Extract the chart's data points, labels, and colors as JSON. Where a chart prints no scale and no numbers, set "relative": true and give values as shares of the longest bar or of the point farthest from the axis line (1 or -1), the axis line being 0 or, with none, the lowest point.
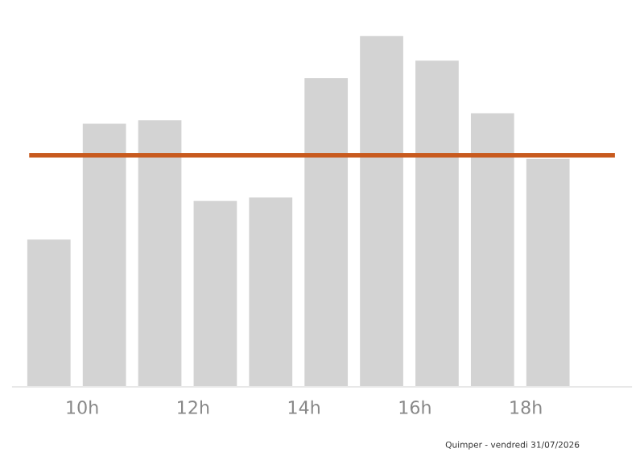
{
  "chart_data": {
    "type": "bar",
    "relative": true,
    "x": [
      9.4,
      10.4,
      11.4,
      12.4,
      13.4,
      14.4,
      15.4,
      16.4,
      17.4,
      18.4
    ],
    "values": [
      0.42,
      0.75,
      0.76,
      0.53,
      0.54,
      0.88,
      1,
      0.93,
      0.78,
      0.65
    ],
    "color": "#d3d3d3",
    "xlim": [
      8.75,
      19.9
    ],
    "xticks": [
      {
        "value": 10,
        "label": "10h"
      },
      {
        "value": 12,
        "label": "12h"
      },
      {
        "value": 14,
        "label": "14h"
      },
      {
        "value": 16,
        "label": "16h"
      },
      {
        "value": 18,
        "label": "18h"
      }
    ],
    "ref_lines": [
      {
        "axis": "y",
        "value": 0.66,
        "color": "#c85a1e"
      }
    ],
    "grid": false,
    "legend": false,
    "tick_labels": "x",
    "annotations": [
      "Quimper - vendredi 31/07/2026"
    ]
  }
}
